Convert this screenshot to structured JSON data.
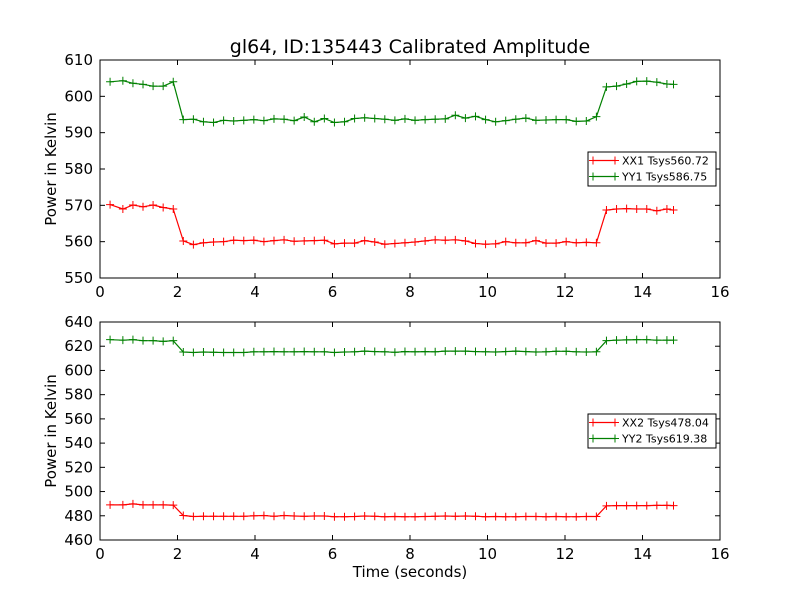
{
  "figure": {
    "title": "gl64, ID:135443 Calibrated Amplitude"
  },
  "chart_data": [
    {
      "type": "line",
      "title": "gl64, ID:135443 Calibrated Amplitude",
      "xlabel": "",
      "ylabel": "Power in Kelvin",
      "xlim": [
        0,
        16
      ],
      "ylim": [
        550,
        610
      ],
      "xticks": [
        0,
        2,
        4,
        6,
        8,
        10,
        12,
        14,
        16
      ],
      "yticks": [
        550,
        560,
        570,
        580,
        590,
        600,
        610
      ],
      "legend_position": "center-right",
      "grid": false,
      "x": [
        0.26,
        0.59,
        0.85,
        1.11,
        1.37,
        1.63,
        1.89,
        2.15,
        2.41,
        2.67,
        2.93,
        3.19,
        3.45,
        3.71,
        3.97,
        4.23,
        4.49,
        4.75,
        5.01,
        5.27,
        5.53,
        5.79,
        6.05,
        6.31,
        6.57,
        6.83,
        7.09,
        7.35,
        7.61,
        7.87,
        8.13,
        8.39,
        8.65,
        8.91,
        9.17,
        9.43,
        9.69,
        9.95,
        10.21,
        10.47,
        10.73,
        10.99,
        11.25,
        11.51,
        11.77,
        12.03,
        12.29,
        12.55,
        12.81,
        13.07,
        13.33,
        13.59,
        13.85,
        14.11,
        14.37,
        14.63,
        14.8
      ],
      "series": [
        {
          "name": "XX1 Tsys560.72",
          "color": "#ff0000",
          "values": [
            570.2,
            569.0,
            570.1,
            569.6,
            570.1,
            569.4,
            569.0,
            560.2,
            559.2,
            559.7,
            559.9,
            560.0,
            560.4,
            560.3,
            560.4,
            560.0,
            560.3,
            560.5,
            560.1,
            560.2,
            560.3,
            560.4,
            559.4,
            559.6,
            559.6,
            560.3,
            559.9,
            559.3,
            559.5,
            559.7,
            559.9,
            560.2,
            560.5,
            560.4,
            560.5,
            560.2,
            559.5,
            559.3,
            559.4,
            560.0,
            559.7,
            559.7,
            560.3,
            559.6,
            559.6,
            560.0,
            559.7,
            559.8,
            559.7,
            568.7,
            569.0,
            569.1,
            569.0,
            569.0,
            568.5,
            569.0,
            568.7
          ]
        },
        {
          "name": "YY1 Tsys586.75",
          "color": "#008000",
          "values": [
            604.0,
            604.3,
            603.6,
            603.3,
            602.8,
            602.8,
            604.0,
            593.6,
            593.7,
            593.0,
            592.8,
            593.4,
            593.2,
            593.4,
            593.6,
            593.3,
            593.8,
            593.7,
            593.3,
            594.3,
            593.0,
            593.9,
            592.8,
            593.0,
            593.9,
            594.1,
            593.9,
            593.7,
            593.4,
            593.8,
            593.4,
            593.6,
            593.7,
            593.8,
            594.8,
            594.0,
            594.5,
            593.6,
            593.0,
            593.3,
            593.7,
            594.0,
            593.4,
            593.5,
            593.6,
            593.6,
            593.1,
            593.2,
            594.4,
            602.6,
            602.8,
            603.4,
            604.1,
            604.2,
            603.9,
            603.4,
            603.3
          ]
        }
      ]
    },
    {
      "type": "line",
      "title": "",
      "xlabel": "Time (seconds)",
      "ylabel": "Power in Kelvin",
      "xlim": [
        0,
        16
      ],
      "ylim": [
        460,
        640
      ],
      "xticks": [
        0,
        2,
        4,
        6,
        8,
        10,
        12,
        14,
        16
      ],
      "yticks": [
        460,
        480,
        500,
        520,
        540,
        560,
        580,
        600,
        620,
        640
      ],
      "legend_position": "center-right",
      "grid": false,
      "x": [
        0.26,
        0.59,
        0.85,
        1.11,
        1.37,
        1.63,
        1.89,
        2.15,
        2.41,
        2.67,
        2.93,
        3.19,
        3.45,
        3.71,
        3.97,
        4.23,
        4.49,
        4.75,
        5.01,
        5.27,
        5.53,
        5.79,
        6.05,
        6.31,
        6.57,
        6.83,
        7.09,
        7.35,
        7.61,
        7.87,
        8.13,
        8.39,
        8.65,
        8.91,
        9.17,
        9.43,
        9.69,
        9.95,
        10.21,
        10.47,
        10.73,
        10.99,
        11.25,
        11.51,
        11.77,
        12.03,
        12.29,
        12.55,
        12.81,
        13.07,
        13.33,
        13.59,
        13.85,
        14.11,
        14.37,
        14.63,
        14.8
      ],
      "series": [
        {
          "name": "XX2 Tsys478.04",
          "color": "#ff0000",
          "values": [
            489.0,
            489.0,
            489.8,
            489.0,
            489.0,
            489.0,
            488.8,
            480.2,
            479.4,
            479.6,
            479.6,
            479.6,
            479.6,
            479.6,
            480.0,
            480.2,
            479.6,
            480.2,
            479.8,
            479.6,
            479.8,
            479.8,
            479.2,
            479.2,
            479.4,
            479.8,
            479.6,
            479.2,
            479.4,
            479.2,
            479.2,
            479.4,
            479.6,
            479.8,
            479.6,
            479.8,
            479.6,
            479.2,
            479.4,
            479.2,
            479.2,
            479.4,
            479.4,
            479.2,
            479.4,
            479.2,
            479.2,
            479.4,
            479.4,
            488.2,
            488.4,
            488.4,
            488.4,
            488.4,
            488.6,
            488.6,
            488.4
          ]
        },
        {
          "name": "YY2 Tsys619.38",
          "color": "#008000",
          "values": [
            625.4,
            625.0,
            625.4,
            624.6,
            624.6,
            624.0,
            624.6,
            615.2,
            614.8,
            615.2,
            615.0,
            614.8,
            614.8,
            614.8,
            615.4,
            615.4,
            615.6,
            615.4,
            615.4,
            615.6,
            615.4,
            615.4,
            614.8,
            615.2,
            615.4,
            616.0,
            615.6,
            615.4,
            615.0,
            615.6,
            615.4,
            615.6,
            615.4,
            616.0,
            616.0,
            616.0,
            615.6,
            615.4,
            615.2,
            615.6,
            616.0,
            615.6,
            615.2,
            615.4,
            615.8,
            615.8,
            615.4,
            615.2,
            615.4,
            624.6,
            625.0,
            625.2,
            625.4,
            625.4,
            625.0,
            625.0,
            625.0
          ]
        }
      ]
    }
  ]
}
